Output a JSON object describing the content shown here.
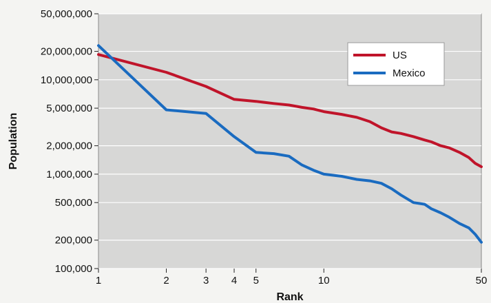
{
  "chart_data": {
    "type": "line",
    "xlabel": "Rank",
    "ylabel": "Population",
    "x_scale": "log",
    "y_scale": "log",
    "xlim": [
      1,
      50
    ],
    "ylim": [
      100000,
      50000000
    ],
    "x_ticks": [
      1,
      2,
      3,
      4,
      5,
      10,
      50
    ],
    "x_tick_labels": [
      "1",
      "2",
      "3",
      "4",
      "5",
      "10",
      "50"
    ],
    "y_ticks": [
      100000,
      200000,
      500000,
      1000000,
      2000000,
      5000000,
      10000000,
      20000000,
      50000000
    ],
    "y_tick_labels": [
      "100,000",
      "200,000",
      "500,000",
      "1,000,000",
      "2,000,000",
      "5,000,000",
      "10,000,000",
      "20,000,000",
      "50,000,000"
    ],
    "grid": "horizontal",
    "legend": "top-right",
    "series": [
      {
        "name": "US",
        "color": "#c0142a",
        "x": [
          1,
          2,
          3,
          4,
          5,
          6,
          7,
          8,
          9,
          10,
          12,
          14,
          16,
          18,
          20,
          22,
          25,
          28,
          30,
          33,
          36,
          40,
          44,
          47,
          50
        ],
        "y": [
          18500000,
          12000000,
          8500000,
          6200000,
          5900000,
          5600000,
          5400000,
          5100000,
          4900000,
          4600000,
          4300000,
          4000000,
          3600000,
          3100000,
          2800000,
          2700000,
          2500000,
          2300000,
          2200000,
          2000000,
          1900000,
          1700000,
          1500000,
          1300000,
          1200000
        ]
      },
      {
        "name": "Mexico",
        "color": "#1a6bc0",
        "x": [
          1,
          2,
          3,
          4,
          5,
          6,
          7,
          8,
          9,
          10,
          12,
          14,
          16,
          18,
          20,
          22,
          25,
          28,
          30,
          33,
          36,
          40,
          44,
          47,
          50
        ],
        "y": [
          23000000,
          4800000,
          4400000,
          2500000,
          1700000,
          1650000,
          1550000,
          1250000,
          1100000,
          1000000,
          950000,
          880000,
          850000,
          800000,
          700000,
          600000,
          500000,
          480000,
          430000,
          390000,
          350000,
          300000,
          270000,
          230000,
          190000
        ]
      }
    ]
  }
}
